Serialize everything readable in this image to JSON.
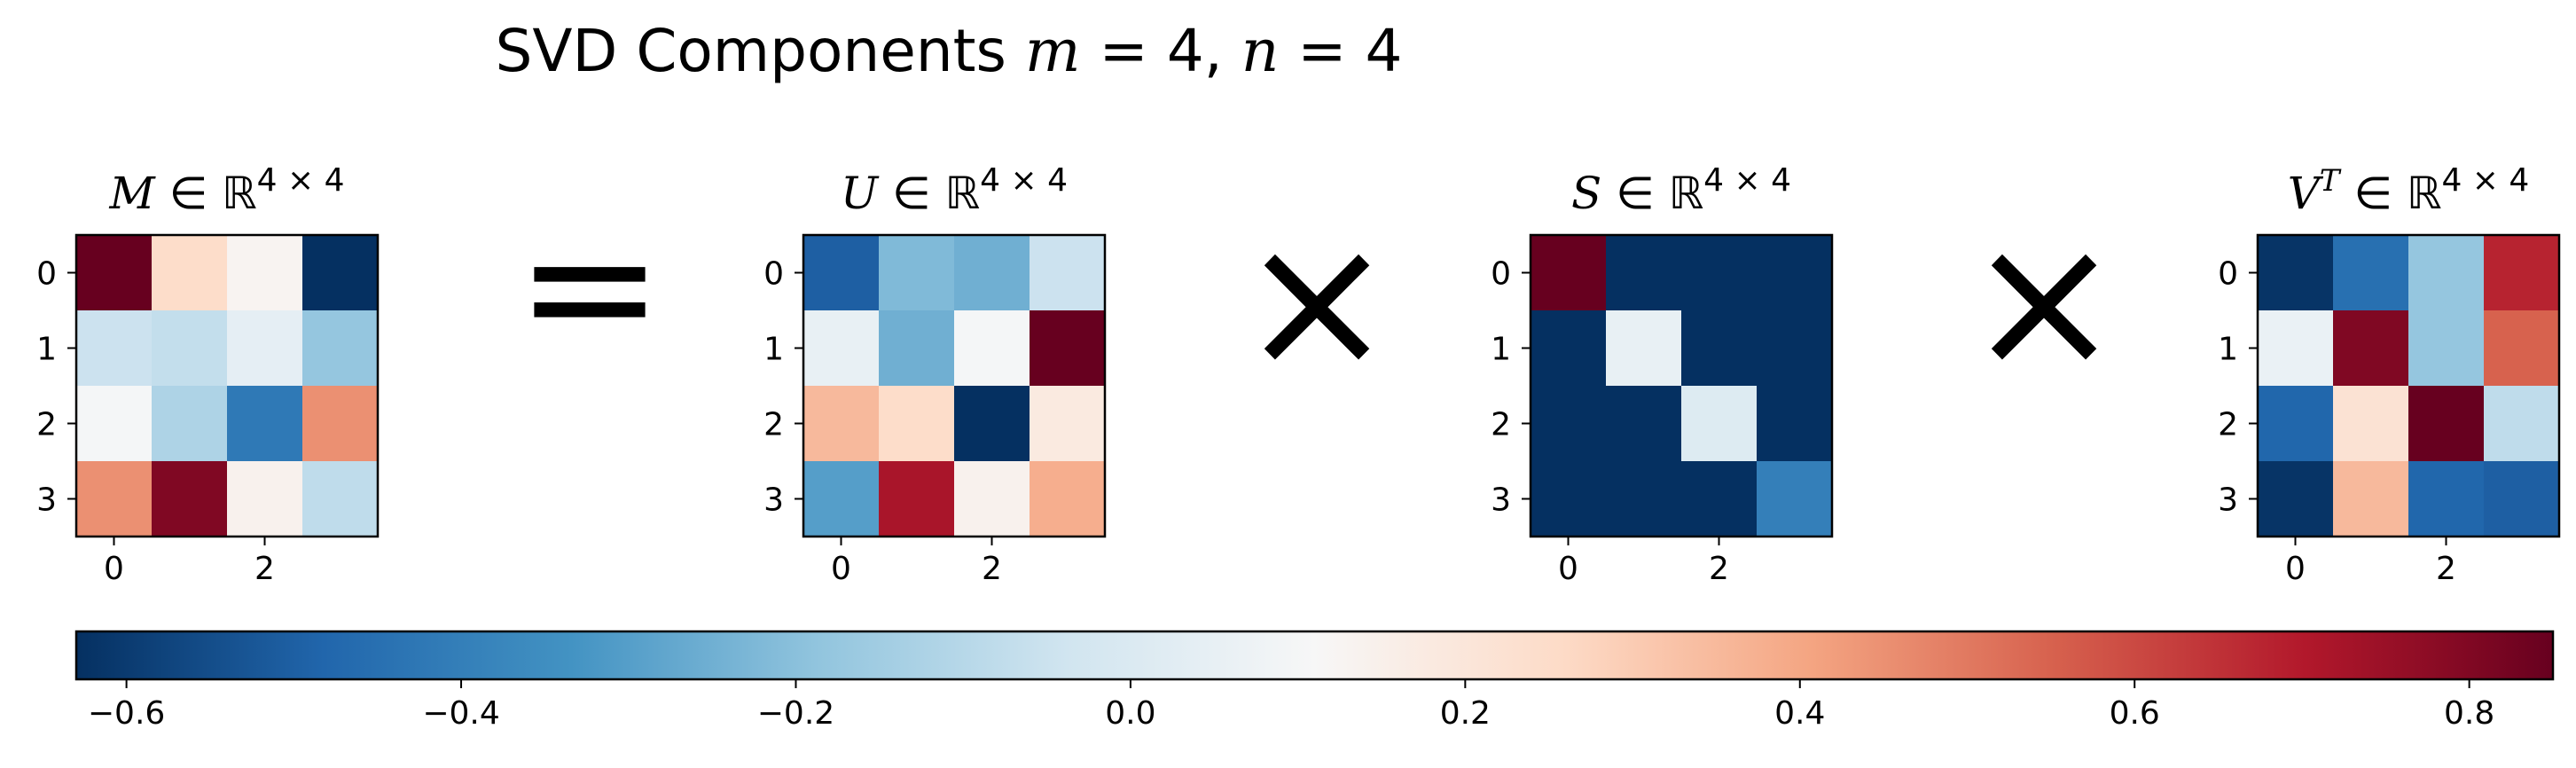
{
  "title": {
    "prefix": "SVD Components ",
    "m_var": "m",
    "m_eq": " = 4, ",
    "n_var": "n",
    "n_eq": " = 4"
  },
  "operators": {
    "equals": "=",
    "times1": "×",
    "times2": "×"
  },
  "colormap": {
    "name": "RdBu_r",
    "stops": [
      "#053061",
      "#2166ac",
      "#4393c3",
      "#92c5de",
      "#d1e5f0",
      "#f7f7f7",
      "#fddbc7",
      "#f4a582",
      "#d6604d",
      "#b2182b",
      "#67001f"
    ]
  },
  "chart_data": {
    "type": "heatmap",
    "vmin": -0.63,
    "vmax": 0.85,
    "colorbar_ticks": [
      -0.6,
      -0.4,
      -0.2,
      0.0,
      0.2,
      0.4,
      0.6,
      0.8
    ],
    "colorbar_tick_labels": [
      "−0.6",
      "−0.4",
      "−0.2",
      "0.0",
      "0.2",
      "0.4",
      "0.6",
      "0.8"
    ],
    "matrices": [
      {
        "name": "M",
        "title_var": "M",
        "title_sup_var": "",
        "title_set": "ℝ",
        "title_exp": "4 × 4",
        "row_ticks": [
          "0",
          "1",
          "2",
          "3"
        ],
        "col_ticks": [
          "0",
          "2"
        ],
        "values": [
          [
            0.85,
            0.25,
            0.13,
            -0.63
          ],
          [
            -0.05,
            -0.07,
            0.04,
            -0.18
          ],
          [
            0.1,
            -0.12,
            -0.42,
            0.45
          ],
          [
            0.45,
            0.8,
            0.14,
            -0.08
          ]
        ]
      },
      {
        "name": "U",
        "title_var": "U",
        "title_sup_var": "",
        "title_set": "ℝ",
        "title_exp": "4 × 4",
        "row_ticks": [
          "0",
          "1",
          "2",
          "3"
        ],
        "col_ticks": [
          "0",
          "2"
        ],
        "values": [
          [
            -0.5,
            -0.22,
            -0.25,
            -0.05
          ],
          [
            0.05,
            -0.25,
            0.1,
            0.85
          ],
          [
            0.35,
            0.25,
            -0.63,
            0.18
          ],
          [
            -0.3,
            0.72,
            0.14,
            0.38
          ]
        ]
      },
      {
        "name": "S",
        "title_var": "S",
        "title_sup_var": "",
        "title_set": "ℝ",
        "title_exp": "4 × 4",
        "row_ticks": [
          "0",
          "1",
          "2",
          "3"
        ],
        "col_ticks": [
          "0",
          "2"
        ],
        "values": [
          [
            0.85,
            -0.63,
            -0.63,
            -0.63
          ],
          [
            -0.63,
            0.05,
            -0.63,
            -0.63
          ],
          [
            -0.63,
            -0.63,
            0.01,
            -0.63
          ],
          [
            -0.63,
            -0.63,
            -0.63,
            -0.4
          ]
        ]
      },
      {
        "name": "VT",
        "title_var": "V",
        "title_sup_var": "T",
        "title_set": "ℝ",
        "title_exp": "4 × 4",
        "row_ticks": [
          "0",
          "1",
          "2",
          "3"
        ],
        "col_ticks": [
          "0",
          "2"
        ],
        "values": [
          [
            -0.62,
            -0.45,
            -0.18,
            0.68
          ],
          [
            0.06,
            0.8,
            -0.18,
            0.55
          ],
          [
            -0.48,
            0.22,
            0.85,
            -0.08
          ],
          [
            -0.62,
            0.35,
            -0.48,
            -0.5
          ]
        ]
      }
    ]
  }
}
